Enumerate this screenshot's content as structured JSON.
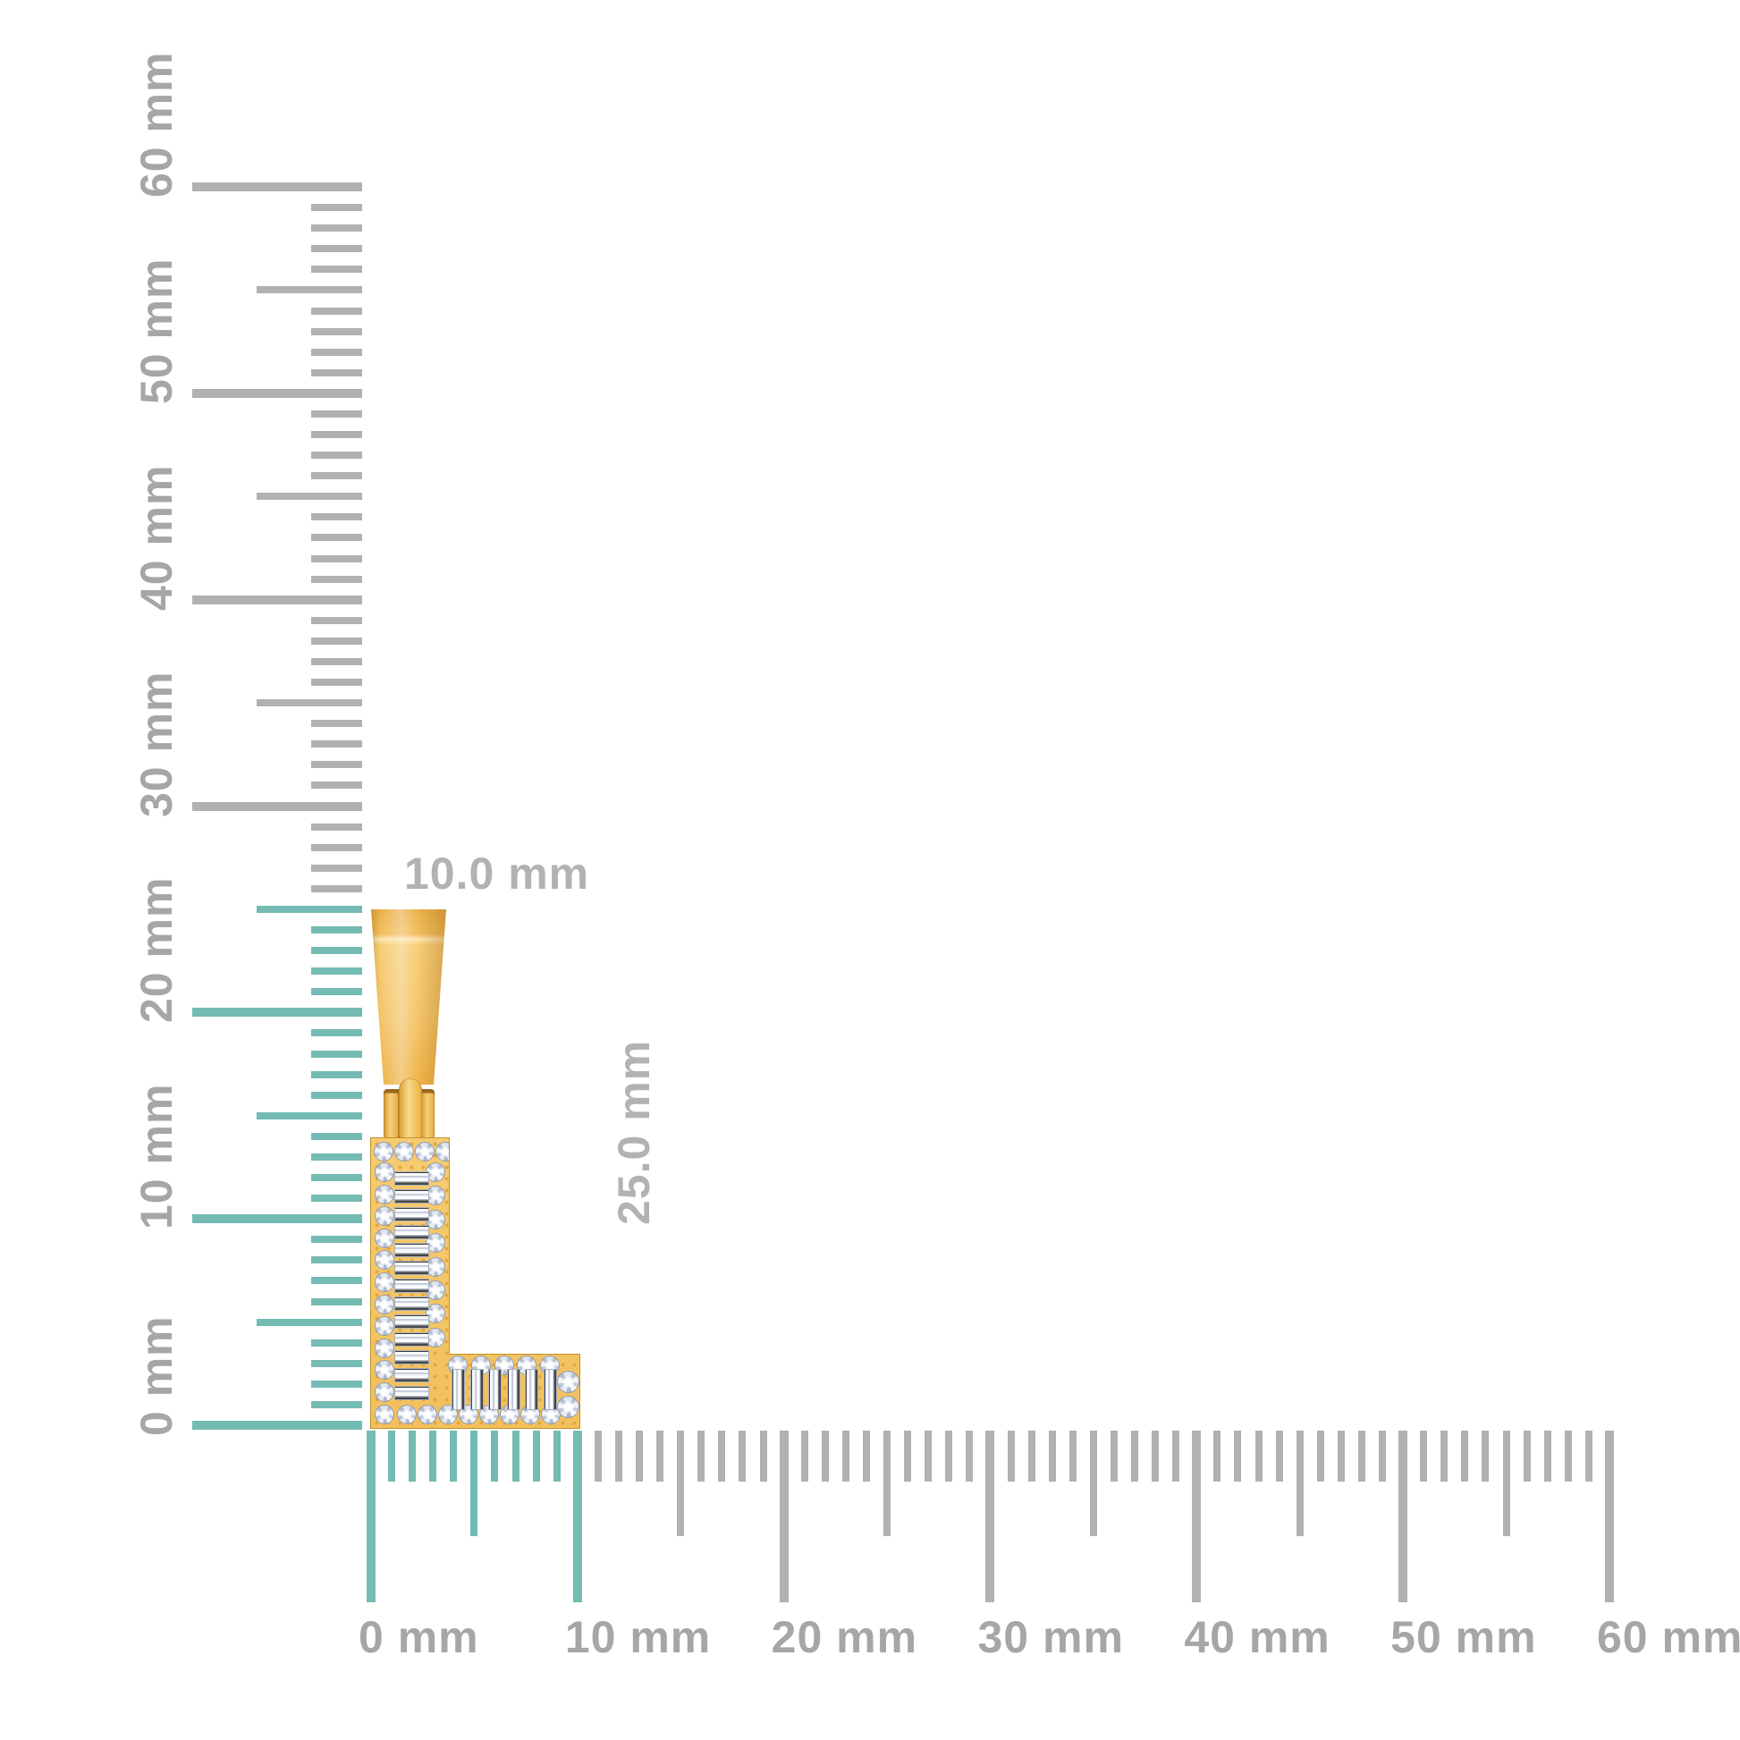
{
  "scene": {
    "type": "jewelry-size-diagram",
    "background_color": "#ffffff",
    "object_description": "Yellow gold initial letter L pendant set with round and baguette diamonds, shown against millimeter rulers"
  },
  "rulers": {
    "unit": "mm",
    "min_mm": 0,
    "max_mm": 60,
    "minor_step_mm": 1,
    "medium_step_mm": 5,
    "major_step_mm": 10,
    "tick_color": "#b1b1b1",
    "highlight_color": "#74bbb3",
    "label_color": "#a6a6a6",
    "vertical": {
      "labels": [
        "0 mm",
        "10 mm",
        "20 mm",
        "30 mm",
        "40 mm",
        "50 mm",
        "60 mm"
      ],
      "highlight_span_mm": 25
    },
    "horizontal": {
      "labels": [
        "0 mm",
        "10 mm",
        "20 mm",
        "30 mm",
        "40 mm",
        "50 mm",
        "60 mm"
      ],
      "highlight_span_mm": 10
    }
  },
  "dimensions": {
    "width_label": "10.0 mm",
    "height_label": "25.0 mm",
    "label_color": "#b2b2b2"
  },
  "pendant": {
    "letter": "L",
    "metal": "yellow-gold",
    "gold_color": "#f3c367",
    "stones": {
      "round_top_row": 4,
      "round_left_column": 12,
      "round_right_column": 8,
      "round_bottom_row": 8,
      "round_arm_top_row": 5,
      "round_arm_end_column": 2,
      "baguette_bar_column": 13,
      "baguette_arm_row": 6
    }
  }
}
